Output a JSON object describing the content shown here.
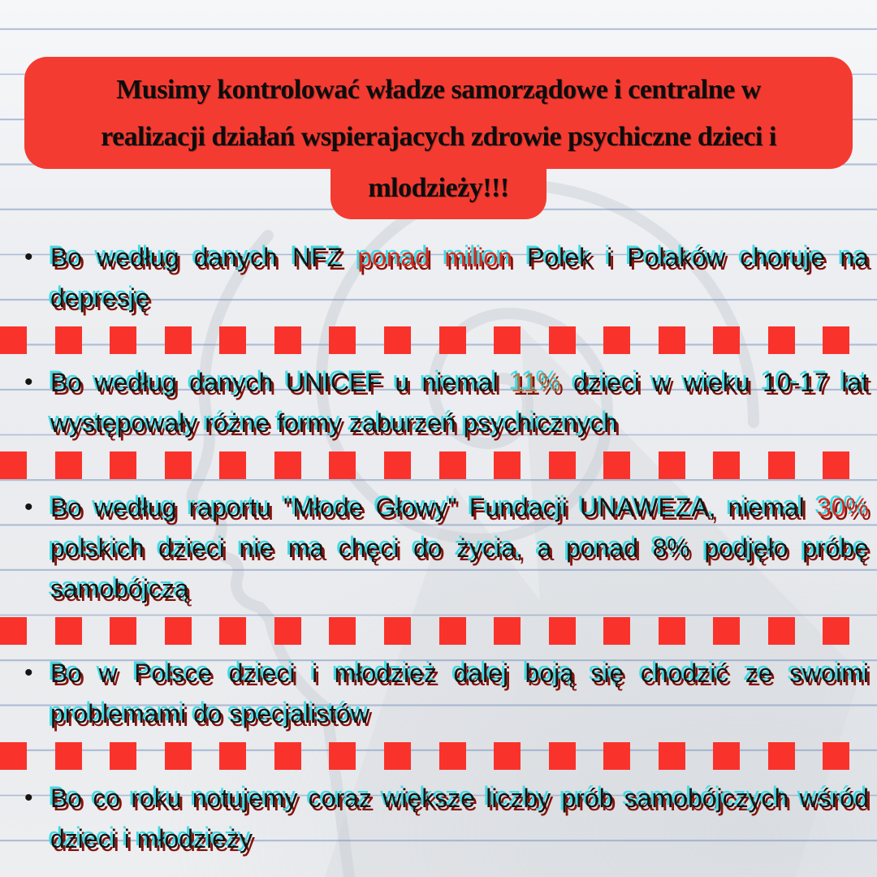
{
  "colors": {
    "header_bg": "#f43b31",
    "square_red": "#fa322c",
    "text_black": "#161412",
    "highlight_red": "#ce2d22",
    "highlight_gold": "#a9744b",
    "shadow_cyan": "#3edbe6",
    "shadow_dark_red": "#86120b",
    "paper_line": "#7a94be"
  },
  "header": {
    "lines": [
      "Musimy kontrolować władze samorządowe i centralne w",
      "realizacji działań wspierajacych zdrowie psychiczne dzieci i",
      "mlodzieży!!!"
    ]
  },
  "bullet_marker": "•",
  "bullets": [
    {
      "segments": [
        {
          "text": "Bo według danych NFZ ",
          "color": "black"
        },
        {
          "text": "ponad milion",
          "color": "red"
        },
        {
          "text": " Polek i Polaków choruje na depresję",
          "color": "black"
        }
      ]
    },
    {
      "segments": [
        {
          "text": "Bo według danych UNICEF u niemal ",
          "color": "black"
        },
        {
          "text": "11%",
          "color": "gold"
        },
        {
          "text": " dzieci w wieku 10-17 lat występowały różne formy zaburzeń psychicznych",
          "color": "black"
        }
      ]
    },
    {
      "segments": [
        {
          "text": "Bo według raportu \"Młode Głowy\" Fundacji UNAWEZA, niemal ",
          "color": "black"
        },
        {
          "text": "30%",
          "color": "red"
        },
        {
          "text": " polskich dzieci nie ma chęci do życia, a ponad 8% podjęło próbę samobójczą",
          "color": "black"
        }
      ]
    },
    {
      "segments": [
        {
          "text": "Bo w Polsce dzieci i młodzież dalej boją się chodzić ze swoimi problemami do specjalistów",
          "color": "black"
        }
      ]
    },
    {
      "segments": [
        {
          "text": "Bo co roku notujemy coraz większe liczby prób samobójczych wśród dzieci i młodzieży",
          "color": "black"
        }
      ]
    }
  ],
  "separator": {
    "square_count": 17,
    "rows": 4
  }
}
